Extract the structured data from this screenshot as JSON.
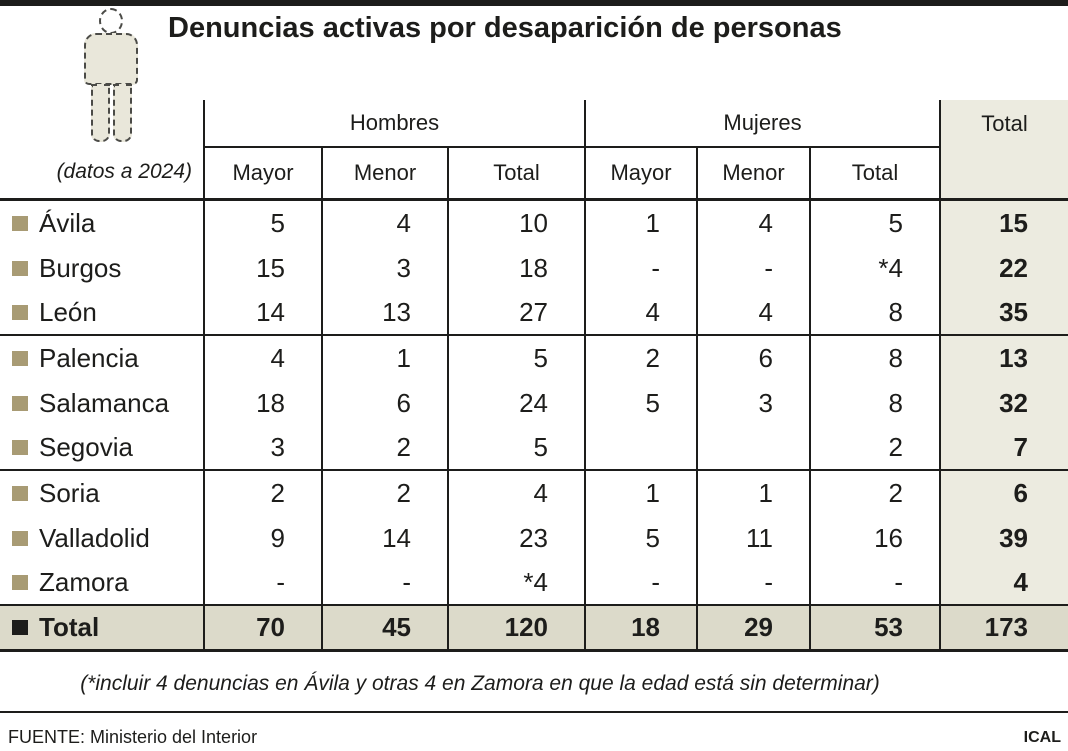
{
  "chart_data": {
    "type": "table",
    "title": "Denuncias activas por desaparición de personas",
    "note": "(datos a 2024)",
    "column_groups": {
      "hombres": "Hombres",
      "mujeres": "Mujeres",
      "total": "Total"
    },
    "sub_columns": {
      "mayor": "Mayor",
      "menor": "Menor",
      "total": "Total"
    },
    "rows": [
      {
        "label": "Ávila",
        "cells": [
          "5",
          "4",
          "10",
          "1",
          "4",
          "5",
          "15"
        ]
      },
      {
        "label": "Burgos",
        "cells": [
          "15",
          "3",
          "18",
          "-",
          "-",
          "*4",
          "22"
        ]
      },
      {
        "label": "León",
        "cells": [
          "14",
          "13",
          "27",
          "4",
          "4",
          "8",
          "35"
        ]
      },
      {
        "label": "Palencia",
        "cells": [
          "4",
          "1",
          "5",
          "2",
          "6",
          "8",
          "13"
        ]
      },
      {
        "label": "Salamanca",
        "cells": [
          "18",
          "6",
          "24",
          "5",
          "3",
          "8",
          "32"
        ]
      },
      {
        "label": "Segovia",
        "cells": [
          "3",
          "2",
          "5",
          "",
          "",
          "2",
          "7"
        ]
      },
      {
        "label": "Soria",
        "cells": [
          "2",
          "2",
          "4",
          "1",
          "1",
          "2",
          "6"
        ]
      },
      {
        "label": "Valladolid",
        "cells": [
          "9",
          "14",
          "23",
          "5",
          "11",
          "16",
          "39"
        ]
      },
      {
        "label": "Zamora",
        "cells": [
          "-",
          "-",
          "*4",
          "-",
          "-",
          "-",
          "4"
        ]
      }
    ],
    "total_row": {
      "label": "Total",
      "cells": [
        "70",
        "45",
        "120",
        "18",
        "29",
        "53",
        "173"
      ]
    },
    "footnote": "(*incluir 4 denuncias en Ávila y otras 4 en Zamora en que la edad está sin determinar)",
    "source": "FUENTE: Ministerio del Interior",
    "credit": "ICAL"
  },
  "colors": {
    "accent_tan": "#a89b74",
    "total_column_bg": "#ecebe0",
    "total_row_bg": "#dcdaca",
    "line": "#1d1d1b"
  }
}
